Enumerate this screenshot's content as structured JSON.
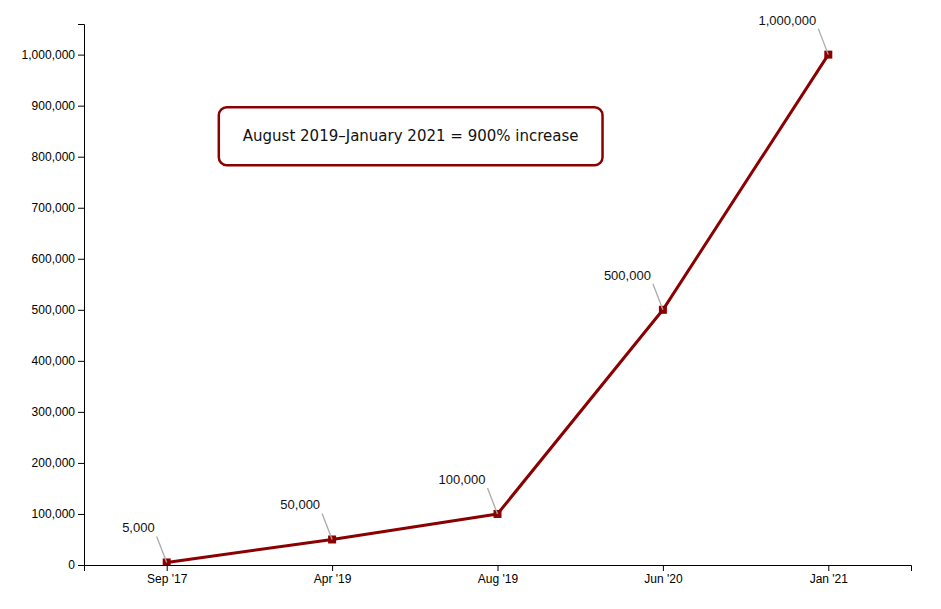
{
  "chart_data": {
    "type": "line",
    "categories": [
      "Sep '17",
      "Apr '19",
      "Aug '19",
      "Jun '20",
      "Jan '21"
    ],
    "values": [
      5000,
      50000,
      100000,
      500000,
      1000000
    ],
    "color": "#8B0000",
    "marker": "square",
    "data_labels": true,
    "value_labels": [
      "5,000",
      "50,000",
      "100,000",
      "500,000",
      "1,000,000"
    ],
    "annotations": [
      "August 2019–January 2021 = 900% increase"
    ],
    "ylim": [
      0,
      1060000
    ],
    "yticks": [
      0,
      {
        "value": 100000,
        "label": "100,000"
      },
      {
        "value": 200000,
        "label": "200,000"
      },
      {
        "value": 300000,
        "label": "300,000"
      },
      {
        "value": 400000,
        "label": "400,000"
      },
      {
        "value": 500000,
        "label": "500,000"
      },
      {
        "value": 600000,
        "label": "600,000"
      },
      {
        "value": 700000,
        "label": "700,000"
      },
      {
        "value": 800000,
        "label": "800,000"
      },
      {
        "value": 900000,
        "label": "900,000"
      },
      {
        "value": 1000000,
        "label": "1,000,000"
      }
    ],
    "grid": false
  }
}
